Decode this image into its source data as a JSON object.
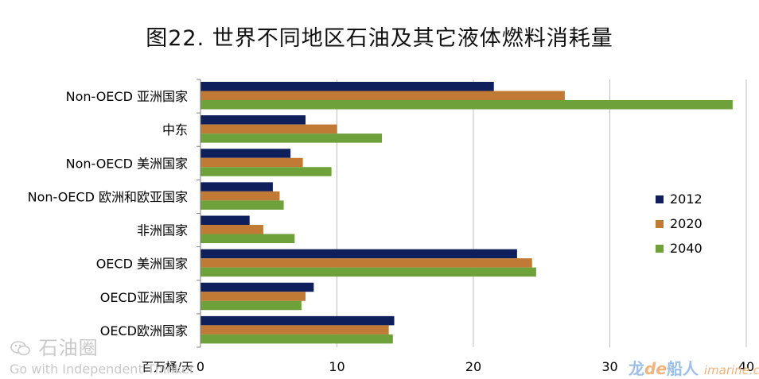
{
  "chart_data": {
    "type": "bar",
    "orientation": "horizontal",
    "title": "图22. 世界不同地区石油及其它液体燃料消耗量",
    "xlabel": "百万桶/天",
    "ylabel": "",
    "xlim": [
      0,
      40
    ],
    "xticks": [
      "0",
      "10",
      "20",
      "30",
      "40"
    ],
    "grid": true,
    "legend_position": "right",
    "categories": [
      "Non-OECD 亚洲国家",
      "中东",
      "Non-OECD 美洲国家",
      "Non-OECD 欧洲和欧亚国家",
      "非洲国家",
      "OECD 美洲国家",
      "OECD亚洲国家",
      "OECD欧洲国家"
    ],
    "series": [
      {
        "name": "2012",
        "color": "#0f1f5c",
        "values": [
          21.5,
          7.7,
          6.6,
          5.3,
          3.6,
          23.2,
          8.3,
          14.2
        ]
      },
      {
        "name": "2020",
        "color": "#c07a35",
        "values": [
          26.7,
          10.0,
          7.5,
          5.8,
          4.6,
          24.3,
          7.7,
          13.8
        ]
      },
      {
        "name": "2040",
        "color": "#6fa13a",
        "values": [
          39.0,
          13.3,
          9.6,
          6.1,
          6.9,
          24.6,
          7.4,
          14.1
        ]
      }
    ]
  },
  "watermarks": {
    "left_brand": "石油圈",
    "left_slogan": "Go with Independent Thinker",
    "right_brand_1": "龙",
    "right_brand_2": "de",
    "right_brand_3": "船人",
    "right_brand_4": "imarine.cn"
  }
}
